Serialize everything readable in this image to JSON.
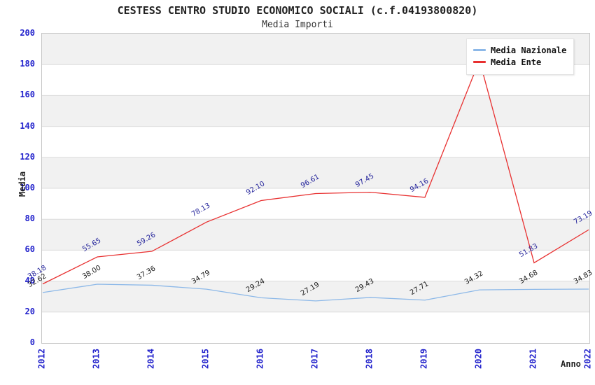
{
  "chart_data": {
    "type": "line",
    "title": "CESTESS CENTRO STUDIO ECONOMICO SOCIALI (c.f.04193800820)",
    "subtitle": "Media Importi",
    "xlabel": "Anno",
    "ylabel": "Media",
    "x_categories": [
      "2012",
      "2013",
      "2014",
      "2015",
      "2016",
      "2017",
      "2018",
      "2019",
      "2020",
      "2021",
      "2022"
    ],
    "y_ticks": [
      0,
      20,
      40,
      60,
      80,
      100,
      120,
      140,
      160,
      180,
      200
    ],
    "ylim": [
      0,
      200
    ],
    "grid": true,
    "background_bands": "alternating white / light-gray horizontal bands every 20 units",
    "legend_position": "top-right",
    "series": [
      {
        "name": "Media Nazionale",
        "color": "#8cb8e8",
        "label_color": "#1a1a1a",
        "values": [
          32.62,
          38.0,
          37.36,
          34.79,
          29.24,
          27.19,
          29.43,
          27.71,
          34.32,
          34.68,
          34.83
        ],
        "value_labels": [
          "32.62",
          "38.00",
          "37.36",
          "34.79",
          "29.24",
          "27.19",
          "29.43",
          "27.71",
          "34.32",
          "34.68",
          "34.83"
        ]
      },
      {
        "name": "Media Ente",
        "color": "#e83030",
        "label_color": "#24249b",
        "values": [
          38.18,
          55.65,
          59.26,
          78.13,
          92.1,
          96.61,
          97.45,
          94.16,
          182.8,
          51.83,
          73.19
        ],
        "value_labels": [
          "38.18",
          "55.65",
          "59.26",
          "78.13",
          "92.10",
          "96.61",
          "97.45",
          "94.16",
          "",
          "51.83",
          "73.19"
        ],
        "estimated_indices": [
          8
        ]
      }
    ],
    "colors": {
      "tick_label": "#2323cc",
      "axis_title": "#222222",
      "grid_line": "#dcdcdc",
      "band_gray": "#f1f1f1",
      "plot_border": "#c6c6c6",
      "background": "#ffffff"
    }
  }
}
